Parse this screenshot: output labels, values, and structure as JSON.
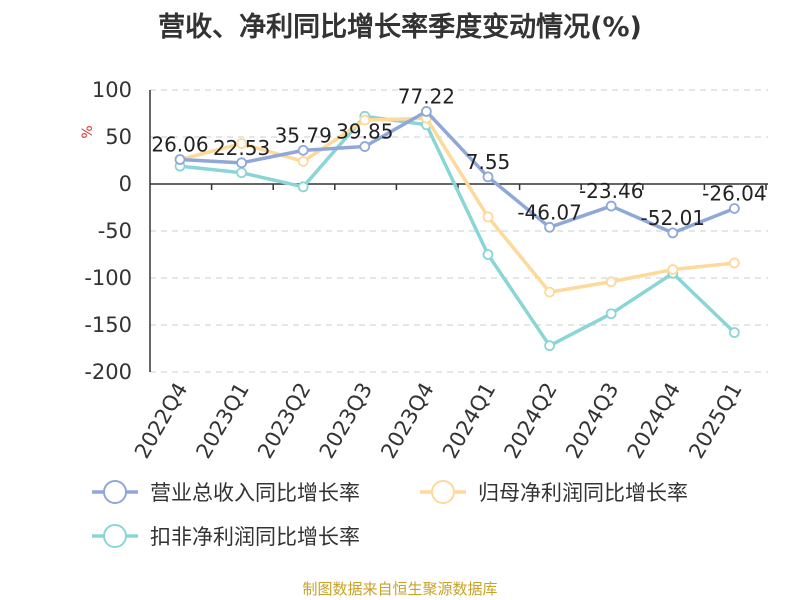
{
  "title": "营收、净利同比增长率季度变动情况(%)",
  "source": "制图数据来自恒生聚源数据库",
  "chart_data": {
    "type": "line",
    "title": "营收、净利同比增长率季度变动情况(%)",
    "ylabel": "%",
    "xlabel": "",
    "ylim": [
      -200,
      100
    ],
    "yticks": [
      100,
      50,
      0,
      -50,
      -100,
      -150,
      -200
    ],
    "grid": true,
    "legend_position": "bottom",
    "categories": [
      "2022Q4",
      "2023Q1",
      "2023Q2",
      "2023Q3",
      "2023Q4",
      "2024Q1",
      "2024Q2",
      "2024Q3",
      "2024Q4",
      "2025Q1"
    ],
    "series": [
      {
        "name": "营业总收入同比增长率",
        "color": "#8fa8d8",
        "values": [
          26.06,
          22.53,
          35.79,
          39.85,
          77.22,
          7.55,
          -46.07,
          -23.46,
          -52.01,
          -26.04
        ],
        "labels": [
          "26.06",
          "22.53",
          "35.79",
          "39.85",
          "77.22",
          "7.55",
          "-46.07",
          "-23.46",
          "-52.01",
          "-26.04"
        ]
      },
      {
        "name": "归母净利润同比增长率",
        "color": "#fdd99b",
        "values": [
          26,
          43,
          24,
          68,
          70,
          -35,
          -115,
          -104,
          -91,
          -84
        ]
      },
      {
        "name": "扣非净利润同比增长率",
        "color": "#8ad5d6",
        "values": [
          19,
          12,
          -3,
          72,
          63,
          -75,
          -172,
          -138,
          -95,
          -158
        ]
      }
    ]
  }
}
